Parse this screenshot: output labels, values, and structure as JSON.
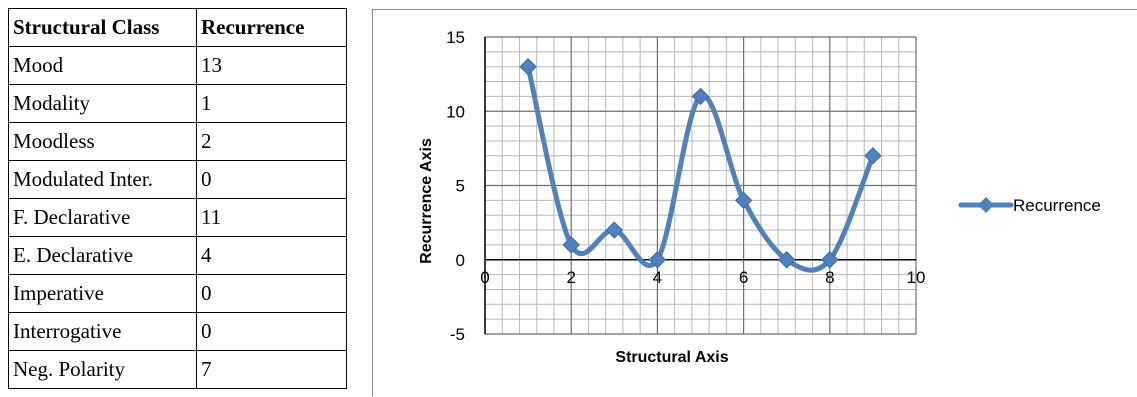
{
  "table": {
    "headers": [
      "Structural Class",
      "Recurrence"
    ],
    "rows": [
      {
        "label": "Mood",
        "value": "13"
      },
      {
        "label": "Modality",
        "value": "1"
      },
      {
        "label": "Moodless",
        "value": "2"
      },
      {
        "label": "Modulated Inter.",
        "value": "0"
      },
      {
        "label": "F. Declarative",
        "value": "11"
      },
      {
        "label": "E. Declarative",
        "value": "4"
      },
      {
        "label": "Imperative",
        "value": "0"
      },
      {
        "label": "Interrogative",
        "value": "0"
      },
      {
        "label": "Neg. Polarity",
        "value": "7"
      }
    ]
  },
  "chart_data": {
    "type": "scatter",
    "title": "",
    "xlabel": "Structural Axis",
    "ylabel": "Recurrence Axis",
    "xlim": [
      0,
      10
    ],
    "ylim": [
      -5,
      15
    ],
    "xticks": [
      0,
      2,
      4,
      6,
      8,
      10
    ],
    "yticks": [
      -5,
      0,
      5,
      10,
      15
    ],
    "grid": true,
    "smooth": true,
    "legend_position": "right",
    "series": [
      {
        "name": "Recurrence",
        "color": "#4f81bd",
        "marker": "diamond",
        "x": [
          1,
          2,
          3,
          4,
          5,
          6,
          7,
          8,
          9
        ],
        "y": [
          13,
          1,
          2,
          0,
          11,
          4,
          0,
          0,
          7
        ]
      }
    ]
  }
}
